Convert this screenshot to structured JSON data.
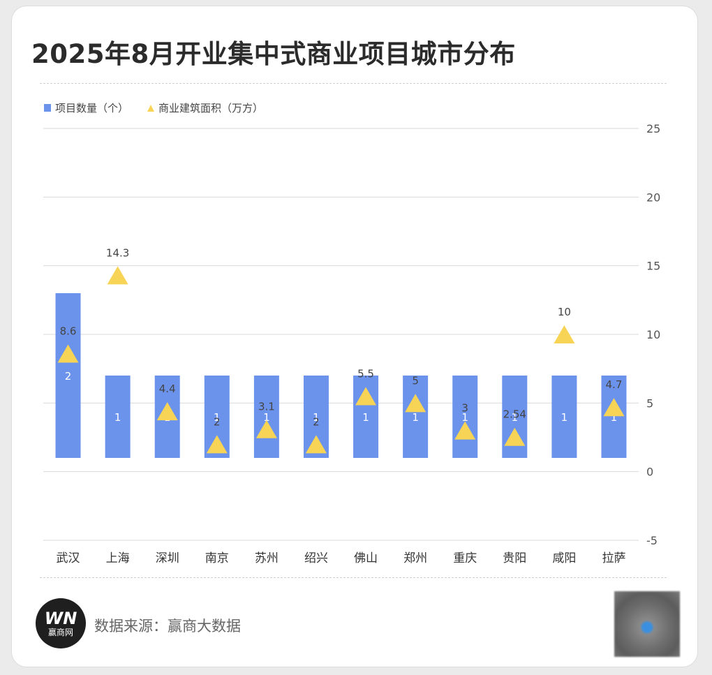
{
  "title": "2025年8月开业集中式商业项目城市分布",
  "footer": {
    "logo_mark": "WN",
    "logo_text": "赢商网",
    "source": "数据来源：赢商大数据"
  },
  "colors": {
    "bar": "#6c93ec",
    "triangle": "#f7d455",
    "grid": "#d9d9d9",
    "axis_text": "#555555",
    "bar_label": "#ffffff"
  },
  "chart_data": {
    "type": "bar",
    "categories": [
      "武汉",
      "上海",
      "深圳",
      "南京",
      "苏州",
      "绍兴",
      "佛山",
      "郑州",
      "重庆",
      "贵阳",
      "咸阳",
      "拉萨"
    ],
    "series": [
      {
        "name": "项目数量（个）",
        "type": "bar",
        "values": [
          2,
          1,
          1,
          1,
          1,
          1,
          1,
          1,
          1,
          1,
          1,
          1
        ],
        "labels": [
          "2",
          "1",
          "1",
          "1",
          "1",
          "1",
          "1",
          "1",
          "1",
          "1",
          "1",
          "1"
        ]
      },
      {
        "name": "商业建筑面积（万方）",
        "type": "scatter",
        "marker": "triangle",
        "values": [
          8.6,
          14.3,
          4.4,
          2,
          3.1,
          2,
          5.5,
          5,
          3,
          2.54,
          10,
          4.7
        ],
        "labels": [
          "8.6",
          "14.3",
          "4.4",
          "2",
          "3.1",
          "2",
          "5.5",
          "5",
          "3",
          "2.54",
          "10",
          "4.7"
        ]
      }
    ],
    "y_right": {
      "ticks": [
        "25",
        "20",
        "15",
        "10",
        "5",
        "0",
        "-5"
      ],
      "range": [
        -5,
        25
      ]
    },
    "bar_axis_range": [
      -1,
      4
    ],
    "grid": true,
    "legend_position": "top-left"
  }
}
